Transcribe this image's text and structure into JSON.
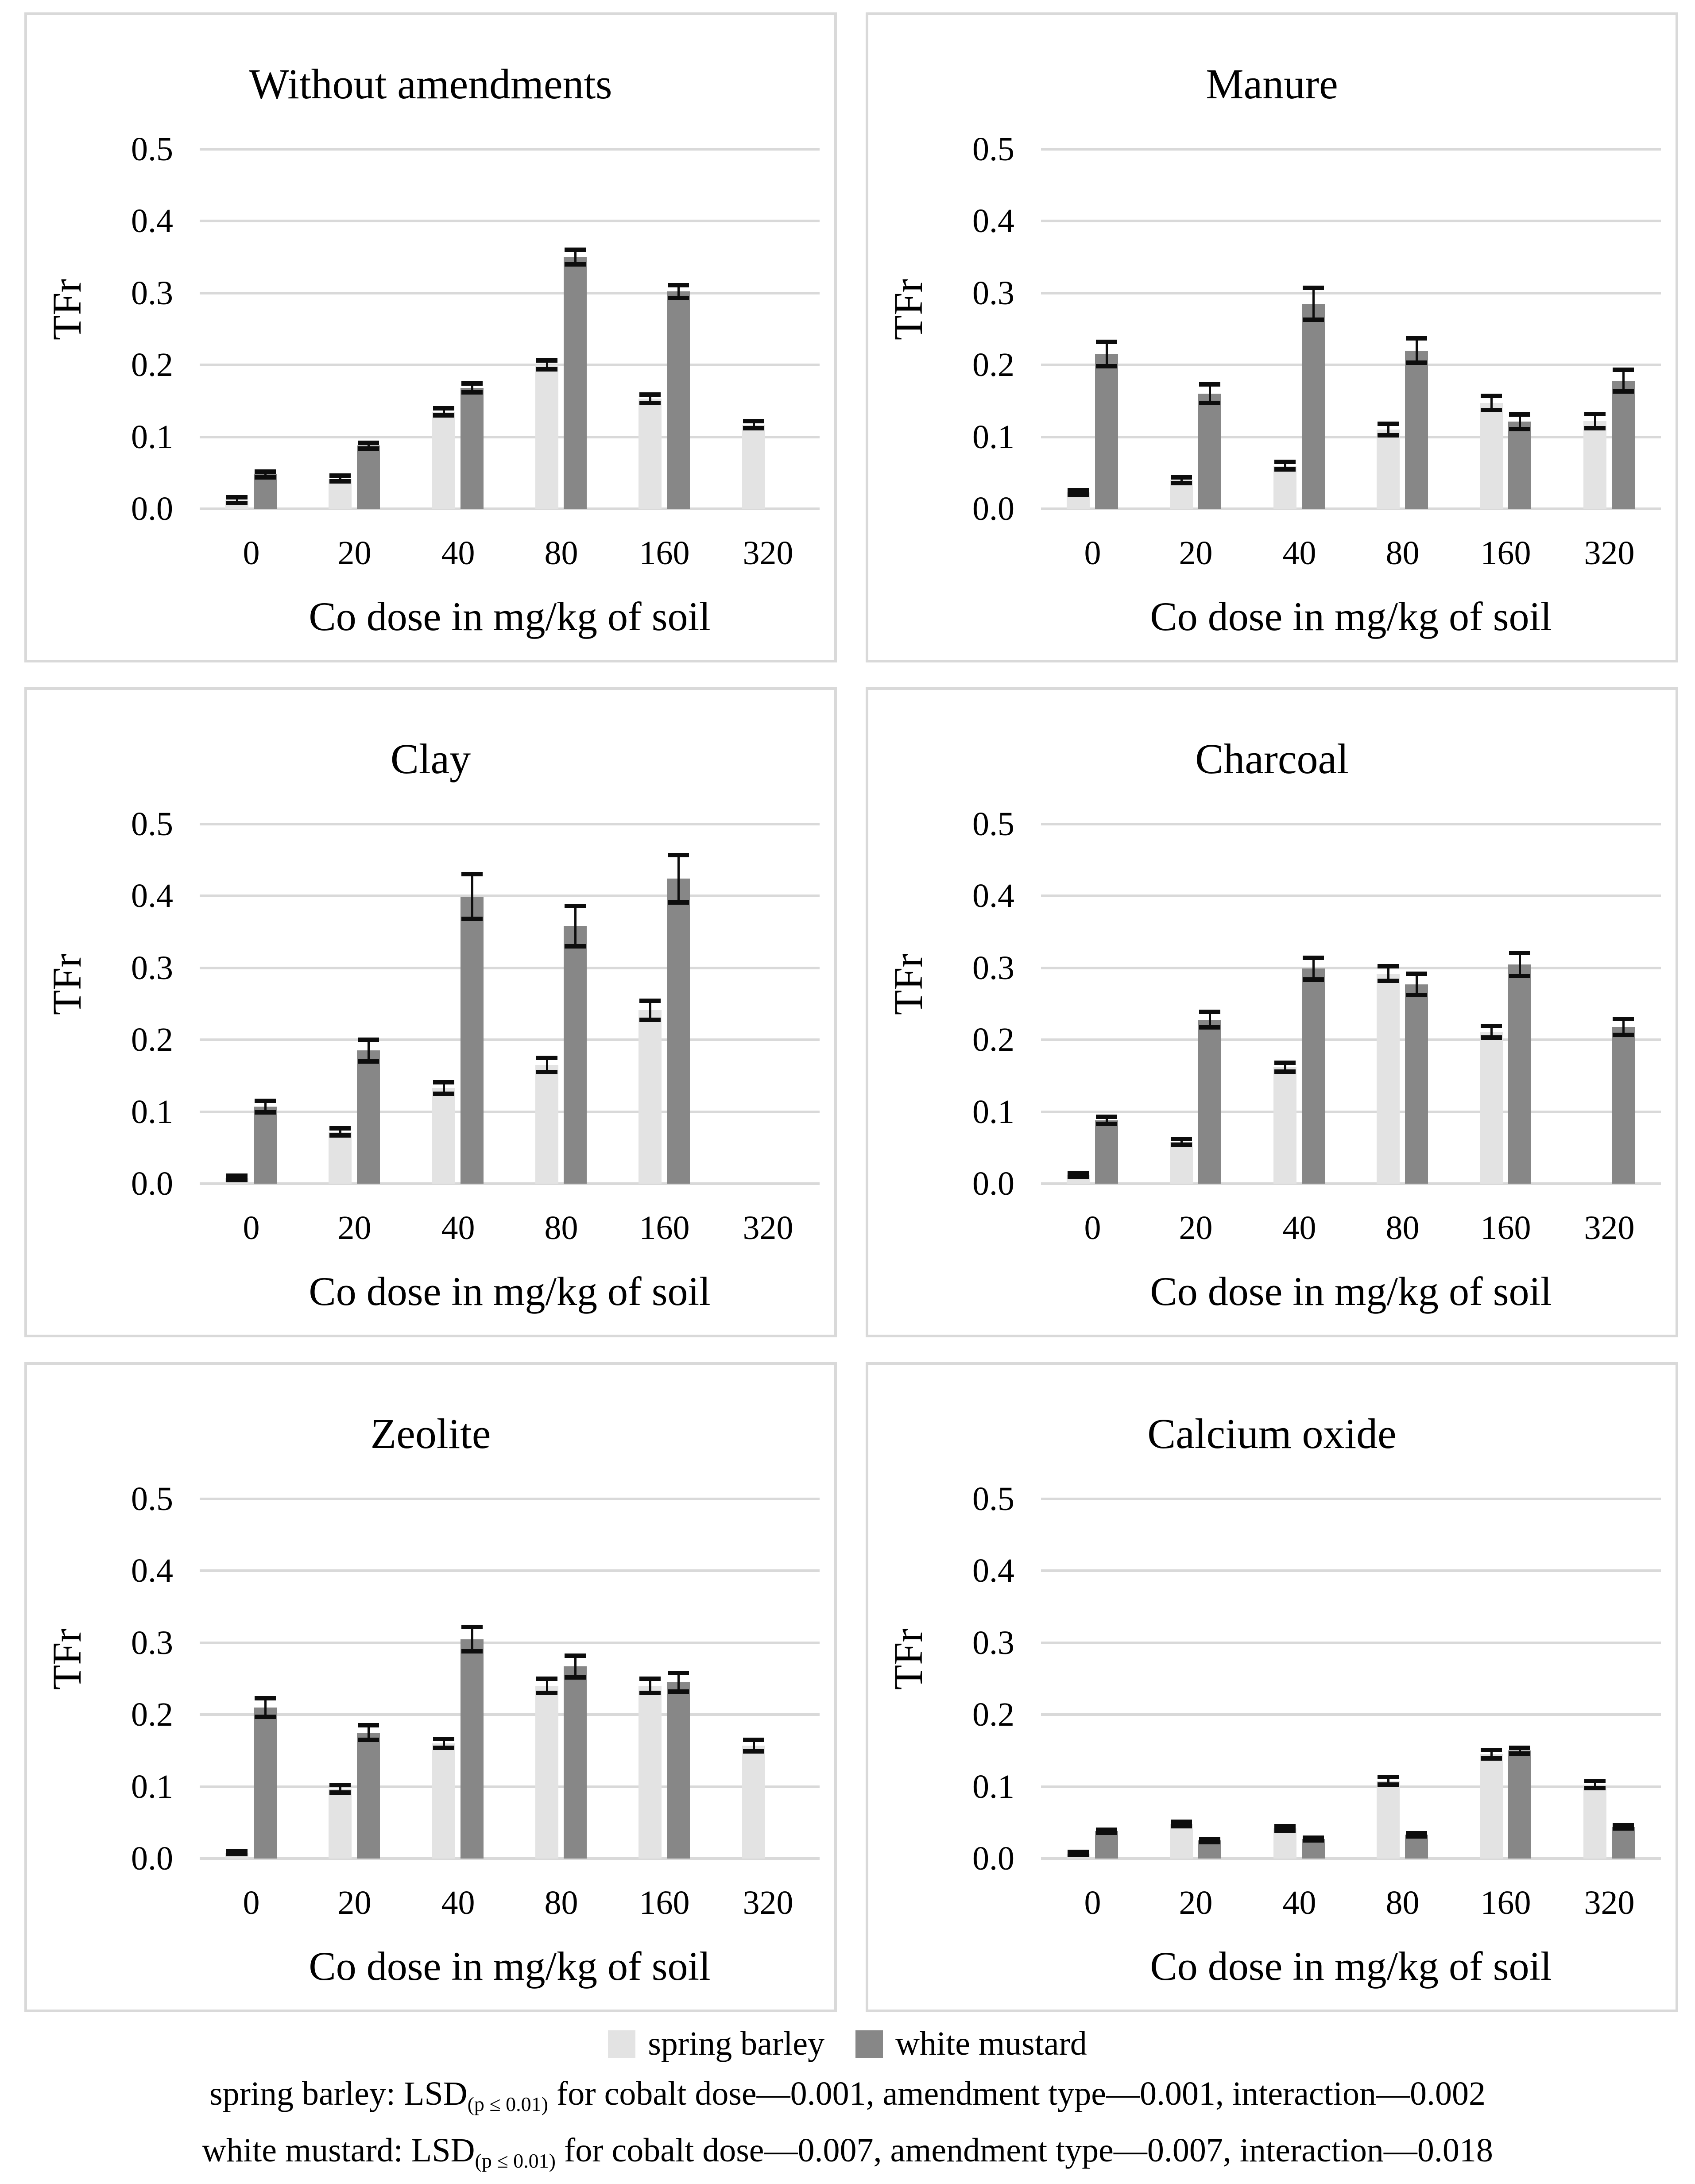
{
  "figure": {
    "legend": [
      {
        "label": "spring barley",
        "color": "#e3e3e3"
      },
      {
        "label": "white mustard",
        "color": "#878787"
      }
    ],
    "footnotes": [
      {
        "prefix": "spring barley: LSD",
        "subscript": "(p ≤ 0.01)",
        "rest": " for cobalt dose—0.001, amendment type—0.001, interaction—0.002"
      },
      {
        "prefix": "white mustard: LSD",
        "subscript": "(p ≤ 0.01)",
        "rest": " for cobalt dose—0.007, amendment type—0.007, interaction—0.018"
      }
    ],
    "colors": {
      "gridline": "#d9d9d9",
      "panel_border": "#d9d9d9",
      "error_bar": "#0d0d0d"
    }
  },
  "chart_data": [
    {
      "type": "bar",
      "title": "Without amendments",
      "xlabel": "Co dose in mg/kg of soil",
      "ylabel": "TFr",
      "categories": [
        "0",
        "20",
        "40",
        "80",
        "160",
        "320"
      ],
      "yticks": [
        "0.0",
        "0.1",
        "0.2",
        "0.3",
        "0.4",
        "0.5"
      ],
      "ylim": [
        0,
        0.554
      ],
      "grid": true,
      "legend_position": "none",
      "series": [
        {
          "name": "spring barley",
          "color": "#e3e3e3",
          "values": [
            0.012,
            0.042,
            0.135,
            0.2,
            0.153,
            0.117
          ],
          "errors": [
            0.004,
            0.004,
            0.005,
            0.006,
            0.006,
            0.005
          ]
        },
        {
          "name": "white mustard",
          "color": "#878787",
          "values": [
            0.048,
            0.088,
            0.168,
            0.35,
            0.302,
            null
          ],
          "errors": [
            0.004,
            0.004,
            0.006,
            0.01,
            0.009,
            null
          ]
        }
      ]
    },
    {
      "type": "bar",
      "title": "Manure",
      "xlabel": "Co dose in mg/kg of soil",
      "ylabel": "TFr",
      "categories": [
        "0",
        "20",
        "40",
        "80",
        "160",
        "320"
      ],
      "yticks": [
        "0.0",
        "0.1",
        "0.2",
        "0.3",
        "0.4",
        "0.5"
      ],
      "ylim": [
        0,
        0.554
      ],
      "grid": true,
      "legend_position": "none",
      "series": [
        {
          "name": "spring barley",
          "color": "#e3e3e3",
          "values": [
            0.023,
            0.04,
            0.06,
            0.11,
            0.147,
            0.122
          ],
          "errors": [
            0.003,
            0.004,
            0.005,
            0.008,
            0.01,
            0.01
          ]
        },
        {
          "name": "white mustard",
          "color": "#878787",
          "values": [
            0.215,
            0.16,
            0.285,
            0.22,
            0.121,
            0.178
          ],
          "errors": [
            0.017,
            0.013,
            0.022,
            0.017,
            0.01,
            0.015
          ]
        }
      ]
    },
    {
      "type": "bar",
      "title": "Clay",
      "xlabel": "Co dose in mg/kg of soil",
      "ylabel": "TFr",
      "categories": [
        "0",
        "20",
        "40",
        "80",
        "160",
        "320"
      ],
      "yticks": [
        "0.0",
        "0.1",
        "0.2",
        "0.3",
        "0.4",
        "0.5"
      ],
      "ylim": [
        0,
        0.554
      ],
      "grid": true,
      "legend_position": "none",
      "series": [
        {
          "name": "spring barley",
          "color": "#e3e3e3",
          "values": [
            0.008,
            0.072,
            0.133,
            0.165,
            0.241,
            null
          ],
          "errors": [
            0.003,
            0.005,
            0.008,
            0.01,
            0.013,
            null
          ]
        },
        {
          "name": "white mustard",
          "color": "#878787",
          "values": [
            0.107,
            0.185,
            0.399,
            0.358,
            0.424,
            null
          ],
          "errors": [
            0.008,
            0.015,
            0.031,
            0.028,
            0.033,
            null
          ]
        }
      ]
    },
    {
      "type": "bar",
      "title": "Charcoal",
      "xlabel": "Co dose in mg/kg of soil",
      "ylabel": "TFr",
      "categories": [
        "0",
        "20",
        "40",
        "80",
        "160",
        "320"
      ],
      "yticks": [
        "0.0",
        "0.1",
        "0.2",
        "0.3",
        "0.4",
        "0.5"
      ],
      "ylim": [
        0,
        0.554
      ],
      "grid": true,
      "legend_position": "none",
      "series": [
        {
          "name": "spring barley",
          "color": "#e3e3e3",
          "values": [
            0.012,
            0.058,
            0.162,
            0.292,
            0.211,
            null
          ],
          "errors": [
            0.003,
            0.004,
            0.006,
            0.01,
            0.008,
            null
          ]
        },
        {
          "name": "white mustard",
          "color": "#878787",
          "values": [
            0.088,
            0.228,
            0.299,
            0.277,
            0.305,
            0.218
          ],
          "errors": [
            0.005,
            0.011,
            0.015,
            0.015,
            0.016,
            0.011
          ]
        }
      ]
    },
    {
      "type": "bar",
      "title": "Zeolite",
      "xlabel": "Co dose in mg/kg of soil",
      "ylabel": "TFr",
      "categories": [
        "0",
        "20",
        "40",
        "80",
        "160",
        "320"
      ],
      "yticks": [
        "0.0",
        "0.1",
        "0.2",
        "0.3",
        "0.4",
        "0.5"
      ],
      "ylim": [
        0,
        0.554
      ],
      "grid": true,
      "legend_position": "none",
      "series": [
        {
          "name": "spring barley",
          "color": "#e3e3e3",
          "values": [
            0.008,
            0.097,
            0.16,
            0.24,
            0.24,
            0.157
          ],
          "errors": [
            0.002,
            0.005,
            0.006,
            0.01,
            0.01,
            0.008
          ]
        },
        {
          "name": "white mustard",
          "color": "#878787",
          "values": [
            0.21,
            0.175,
            0.305,
            0.267,
            0.245,
            null
          ],
          "errors": [
            0.013,
            0.01,
            0.017,
            0.015,
            0.013,
            null
          ]
        }
      ]
    },
    {
      "type": "bar",
      "title": "Calcium oxide",
      "xlabel": "Co dose in mg/kg of soil",
      "ylabel": "TFr",
      "categories": [
        "0",
        "20",
        "40",
        "80",
        "160",
        "320"
      ],
      "yticks": [
        "0.0",
        "0.1",
        "0.2",
        "0.3",
        "0.4",
        "0.5"
      ],
      "ylim": [
        0,
        0.554
      ],
      "grid": true,
      "legend_position": "none",
      "series": [
        {
          "name": "spring barley",
          "color": "#e3e3e3",
          "values": [
            0.007,
            0.048,
            0.042,
            0.108,
            0.145,
            0.103
          ],
          "errors": [
            0.002,
            0.003,
            0.003,
            0.005,
            0.006,
            0.005
          ]
        },
        {
          "name": "white mustard",
          "color": "#878787",
          "values": [
            0.038,
            0.025,
            0.027,
            0.033,
            0.15,
            0.044
          ],
          "errors": [
            0.002,
            0.002,
            0.002,
            0.002,
            0.004,
            0.002
          ]
        }
      ]
    }
  ]
}
